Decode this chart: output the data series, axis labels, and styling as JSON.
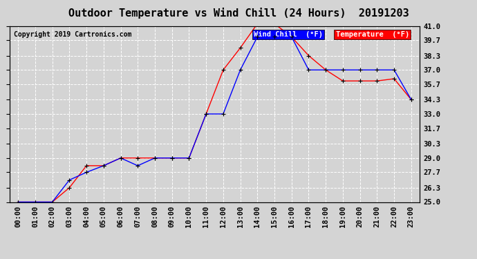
{
  "title": "Outdoor Temperature vs Wind Chill (24 Hours)  20191203",
  "copyright": "Copyright 2019 Cartronics.com",
  "legend_wind_chill": "Wind Chill  (°F)",
  "legend_temperature": "Temperature  (°F)",
  "x_labels": [
    "00:00",
    "01:00",
    "02:00",
    "03:00",
    "04:00",
    "05:00",
    "06:00",
    "07:00",
    "08:00",
    "09:00",
    "10:00",
    "11:00",
    "12:00",
    "13:00",
    "14:00",
    "15:00",
    "16:00",
    "17:00",
    "18:00",
    "19:00",
    "20:00",
    "21:00",
    "22:00",
    "23:00"
  ],
  "temperature": [
    25.0,
    25.0,
    25.0,
    26.3,
    28.3,
    28.3,
    29.0,
    29.0,
    29.0,
    29.0,
    29.0,
    33.0,
    37.0,
    39.0,
    41.2,
    41.2,
    40.0,
    38.3,
    37.0,
    36.0,
    36.0,
    36.0,
    36.2,
    34.3
  ],
  "wind_chill": [
    25.0,
    25.0,
    25.0,
    27.0,
    27.7,
    28.3,
    29.0,
    28.3,
    29.0,
    29.0,
    29.0,
    33.0,
    33.0,
    37.0,
    40.0,
    40.0,
    40.0,
    37.0,
    37.0,
    37.0,
    37.0,
    37.0,
    37.0,
    34.3
  ],
  "ylim_min": 25.0,
  "ylim_max": 41.0,
  "yticks": [
    25.0,
    26.3,
    27.7,
    29.0,
    30.3,
    31.7,
    33.0,
    34.3,
    35.7,
    37.0,
    38.3,
    39.7,
    41.0
  ],
  "temp_color": "#ff0000",
  "wind_color": "#0000ff",
  "bg_color": "#d4d4d4",
  "grid_color": "#ffffff",
  "title_fontsize": 11,
  "copyright_fontsize": 7,
  "legend_fontsize": 7.5,
  "tick_fontsize": 7.5
}
